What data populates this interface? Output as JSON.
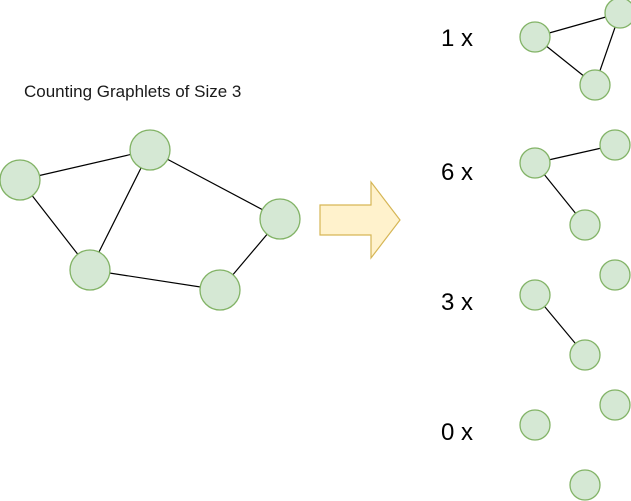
{
  "title": "Counting Graphlets of Size 3",
  "colors": {
    "node_fill": "#d5e8d4",
    "node_stroke": "#82b366",
    "arrow_fill": "#fff2cc",
    "arrow_stroke": "#d6b656"
  },
  "graph": {
    "nodes": [
      "A",
      "B",
      "C",
      "D",
      "E"
    ],
    "edges": [
      [
        "A",
        "B"
      ],
      [
        "A",
        "C"
      ],
      [
        "B",
        "C"
      ],
      [
        "B",
        "D"
      ],
      [
        "C",
        "E"
      ],
      [
        "D",
        "E"
      ]
    ]
  },
  "graphlets": [
    {
      "count_label": "1 x",
      "type": "triangle",
      "edge_count": 3
    },
    {
      "count_label": "6 x",
      "type": "path",
      "edge_count": 2
    },
    {
      "count_label": "3 x",
      "type": "single-edge",
      "edge_count": 1
    },
    {
      "count_label": "0 x",
      "type": "empty",
      "edge_count": 0
    }
  ]
}
